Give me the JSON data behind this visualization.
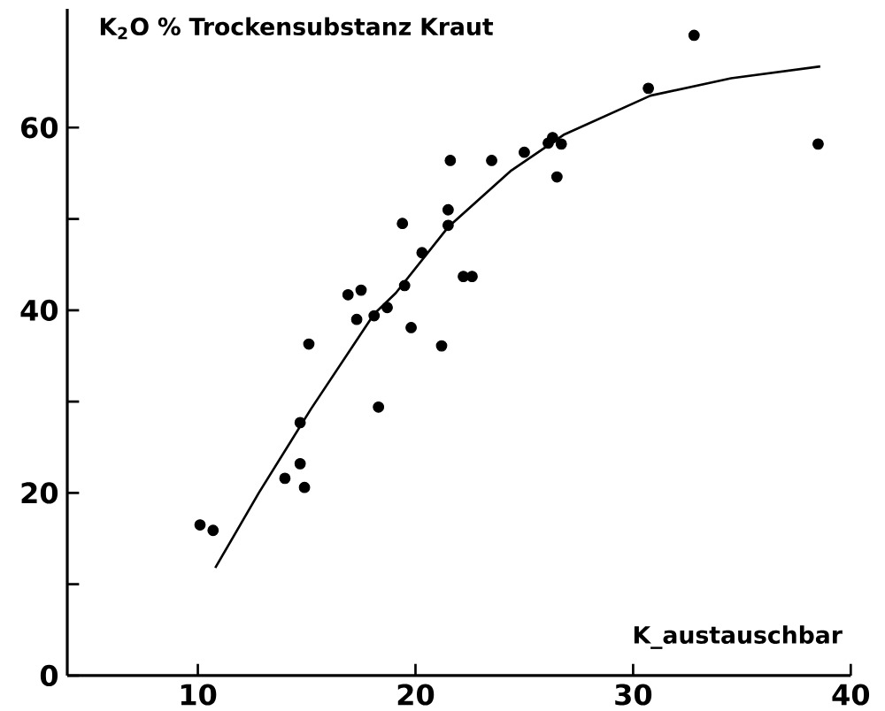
{
  "chart_data": {
    "type": "scatter",
    "ylabel": "K$_{2}$O % Trockensubstanz Kraut",
    "xlabel": "K_austauschbar",
    "xlim": [
      4,
      40
    ],
    "ylim": [
      0,
      73
    ],
    "xticks": [
      10,
      20,
      30,
      40
    ],
    "yticks": [
      0,
      {
        "value": 10,
        "label": null
      },
      20,
      {
        "value": 30,
        "label": null
      },
      40,
      {
        "value": 50,
        "label": null
      },
      60
    ],
    "grid": false,
    "series": [
      {
        "color": "#000000",
        "marker": "circle",
        "x": [
          10.1,
          10.7,
          14.0,
          14.7,
          14.9,
          14.7,
          15.1,
          18.3,
          17.3,
          18.1,
          19.8,
          19.4,
          16.9,
          17.5,
          18.7,
          19.5,
          20.3,
          21.2,
          21.5,
          21.5,
          21.6,
          22.2,
          22.6,
          23.5,
          25.0,
          26.1,
          26.3,
          26.7,
          26.5,
          30.7,
          32.8,
          38.5
        ],
        "values": [
          16.5,
          15.9,
          21.6,
          23.2,
          20.6,
          27.7,
          36.3,
          29.4,
          39,
          39.4,
          38.1,
          49.5,
          41.7,
          42.2,
          40.3,
          42.7,
          46.3,
          36.1,
          51.0,
          49.3,
          56.4,
          43.7,
          43.7,
          56.4,
          57.3,
          58.3,
          58.9,
          58.2,
          54.6,
          64.3,
          70.1,
          58.2
        ]
      },
      {
        "type": "line",
        "color": "#000000",
        "marker": "none",
        "line_style": "solid",
        "x": [
          10.8,
          12.8,
          15.2,
          18.1,
          19.1,
          21.5,
          24.4,
          26.8,
          30.8,
          34.5,
          38.6
        ],
        "values": [
          11.8,
          20,
          29.2,
          39.6,
          41.9,
          49.1,
          55.3,
          59.2,
          63.5,
          65.4,
          66.7
        ]
      }
    ]
  }
}
